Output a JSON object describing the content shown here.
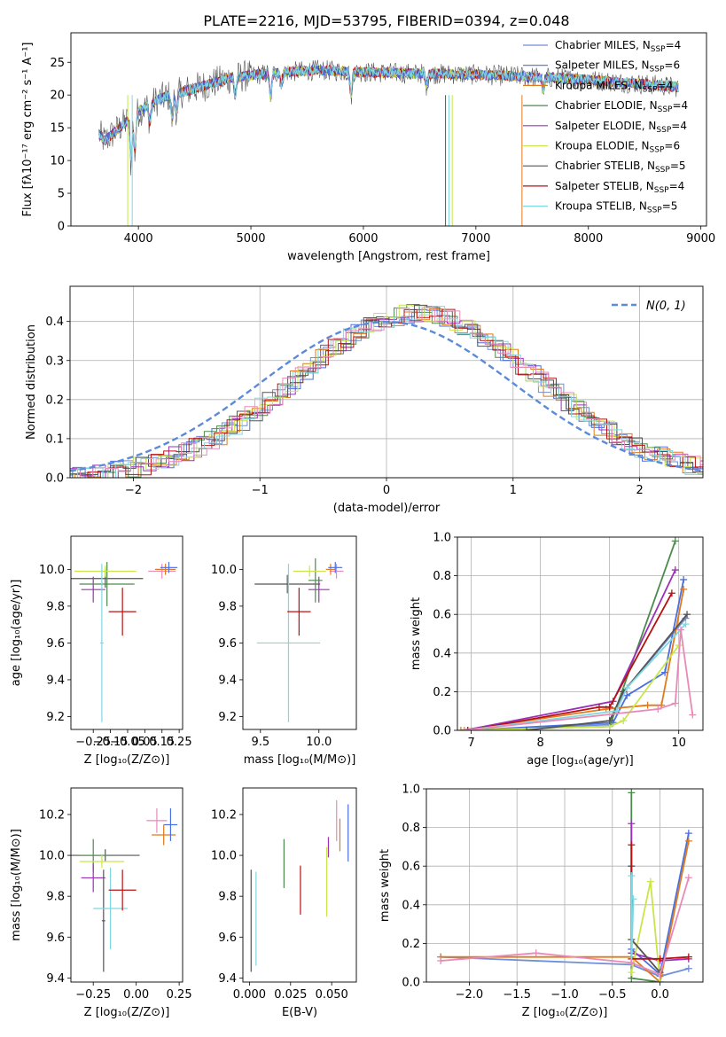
{
  "title": "PLATE=2216, MJD=53795, FIBERID=0394, z=0.048",
  "colors": {
    "chabrier_miles": "#6f8fd8",
    "salpeter_miles": "#4a6fdf",
    "kroupa_miles": "#e07a1a",
    "chabrier_elodie": "#4c8a4c",
    "salpeter_elodie": "#9b30b8",
    "kroupa_elodie": "#c8e64a",
    "chabrier_stelib": "#555555",
    "salpeter_stelib": "#b81010",
    "kroupa_stelib": "#7fd8e0",
    "pink": "#e88ab8",
    "normal_curve": "#5b8ad8"
  },
  "chart_data": [
    {
      "id": "spectrum",
      "type": "line",
      "xlabel": "wavelength [Angstrom, rest frame]",
      "ylabel": "Flux [fλ10⁻¹⁷ erg cm⁻² s⁻¹ A⁻¹]",
      "xlim": [
        3400,
        9050
      ],
      "ylim": [
        0,
        29.5
      ],
      "xticks": [
        "4000",
        "5000",
        "6000",
        "7000",
        "8000",
        "9000"
      ],
      "yticks": [
        "0",
        "5",
        "10",
        "15",
        "20",
        "25"
      ],
      "continuum": {
        "x": [
          3650,
          3700,
          3800,
          3900,
          4000,
          4200,
          4400,
          4600,
          4800,
          5000,
          5300,
          5600,
          6000,
          6400,
          6800,
          7200,
          7600,
          8000,
          8400,
          8800
        ],
        "y": [
          14,
          13,
          14.5,
          16,
          17.5,
          19.5,
          20.5,
          21.5,
          22.5,
          23,
          23.5,
          23.8,
          23.5,
          23.3,
          23.2,
          23,
          22.7,
          22.3,
          21.8,
          21.2
        ]
      },
      "legend": [
        {
          "label": "Chabrier MILES, N",
          "sub": "SSP",
          "tail": "=4",
          "color": "#6f8fd8"
        },
        {
          "label": "Salpeter MILES, N",
          "sub": "SSP",
          "tail": "=6",
          "color": "#4a6fdf"
        },
        {
          "label": "Kroupa MILES, N",
          "sub": "SSP",
          "tail": "=4",
          "color": "#e07a1a"
        },
        {
          "label": "Chabrier ELODIE, N",
          "sub": "SSP",
          "tail": "=4",
          "color": "#4c8a4c"
        },
        {
          "label": "Salpeter ELODIE, N",
          "sub": "SSP",
          "tail": "=4",
          "color": "#9b30b8"
        },
        {
          "label": "Kroupa ELODIE, N",
          "sub": "SSP",
          "tail": "=6",
          "color": "#c8e64a"
        },
        {
          "label": "Chabrier STELIB, N",
          "sub": "SSP",
          "tail": "=5",
          "color": "#555555"
        },
        {
          "label": "Salpeter STELIB, N",
          "sub": "SSP",
          "tail": "=4",
          "color": "#b81010"
        },
        {
          "label": "Kroupa STELIB, N",
          "sub": "SSP",
          "tail": "=5",
          "color": "#7fd8e0"
        }
      ]
    },
    {
      "id": "residuals",
      "type": "line",
      "xlabel": "(data-model)/error",
      "ylabel": "Normed distribution",
      "xlim": [
        -2.5,
        2.5
      ],
      "ylim": [
        0,
        0.49
      ],
      "xticks": [
        "−2",
        "−1",
        "0",
        "1",
        "2"
      ],
      "yticks": [
        "0.0",
        "0.1",
        "0.2",
        "0.3",
        "0.4"
      ],
      "legend": [
        {
          "label": "𝒩(0, 1)",
          "color": "#5b8ad8"
        }
      ],
      "grid": true
    },
    {
      "id": "age_vs_z",
      "type": "scatter",
      "xlabel": "Z [log₁₀(Z/Z⊙)]",
      "ylabel": "age  [log₁₀(age/yr)]",
      "xlim": [
        -0.38,
        0.27
      ],
      "ylim": [
        9.13,
        10.18
      ],
      "xticks": [
        "−0.25",
        "−0.15",
        "−0.05",
        "0.05",
        "0.15",
        "0.25"
      ],
      "yticks": [
        "9.2",
        "9.4",
        "9.6",
        "9.8",
        "10.0"
      ],
      "points": [
        {
          "x": -0.18,
          "xerr": 0.22,
          "y": 9.95,
          "yerr": 0.05,
          "c": "#555555"
        },
        {
          "x": -0.25,
          "xerr": 0.07,
          "y": 9.89,
          "yerr": 0.07,
          "c": "#9b30b8"
        },
        {
          "x": -0.17,
          "xerr": 0.16,
          "y": 9.92,
          "yerr": 0.12,
          "c": "#4c8a4c"
        },
        {
          "x": -0.18,
          "xerr": 0.18,
          "y": 9.99,
          "yerr": 0.03,
          "c": "#c8e64a"
        },
        {
          "x": -0.2,
          "xerr": 0.01,
          "y": 9.6,
          "yerr": 0.43,
          "c": "#7fd8e0"
        },
        {
          "x": -0.08,
          "xerr": 0.08,
          "y": 9.77,
          "yerr": 0.13,
          "c": "#b81010"
        },
        {
          "x": 0.15,
          "xerr": 0.08,
          "y": 9.99,
          "yerr": 0.04,
          "c": "#e88ab8"
        },
        {
          "x": 0.17,
          "xerr": 0.06,
          "y": 10.0,
          "yerr": 0.03,
          "c": "#e07a1a"
        },
        {
          "x": 0.19,
          "xerr": 0.05,
          "y": 10.01,
          "yerr": 0.03,
          "c": "#4a6fdf"
        }
      ]
    },
    {
      "id": "age_vs_mass",
      "type": "scatter",
      "xlabel": "mass [log₁₀(M/M⊙)]",
      "ylabel": "",
      "xlim": [
        9.35,
        10.32
      ],
      "ylim": [
        9.13,
        10.18
      ],
      "xticks": [
        "9.5",
        "10.0"
      ],
      "yticks": [
        "9.2",
        "9.4",
        "9.6",
        "9.8",
        "10.0"
      ],
      "points": [
        {
          "x": 9.73,
          "xerr": 0.28,
          "y": 9.92,
          "yerr": 0.05,
          "c": "#555555"
        },
        {
          "x": 10.0,
          "xerr": 0.09,
          "y": 9.89,
          "yerr": 0.07,
          "c": "#9b30b8"
        },
        {
          "x": 9.97,
          "xerr": 0.06,
          "y": 9.94,
          "yerr": 0.12,
          "c": "#4c8a4c"
        },
        {
          "x": 9.92,
          "xerr": 0.14,
          "y": 9.99,
          "yerr": 0.03,
          "c": "#c8e64a"
        },
        {
          "x": 9.74,
          "xerr": 0.27,
          "y": 9.6,
          "yerr": 0.43,
          "c": "#7fd8e0"
        },
        {
          "x": 9.83,
          "xerr": 0.1,
          "y": 9.77,
          "yerr": 0.13,
          "c": "#b81010"
        },
        {
          "x": 10.15,
          "xerr": 0.06,
          "y": 9.99,
          "yerr": 0.04,
          "c": "#e88ab8"
        },
        {
          "x": 10.1,
          "xerr": 0.04,
          "y": 10.0,
          "yerr": 0.03,
          "c": "#e07a1a"
        },
        {
          "x": 10.14,
          "xerr": 0.06,
          "y": 10.01,
          "yerr": 0.03,
          "c": "#4a6fdf"
        }
      ]
    },
    {
      "id": "massweight_vs_age",
      "type": "line",
      "xlabel": "age  [log₁₀(age/yr)]",
      "ylabel": "mass weight",
      "xlim": [
        6.8,
        10.35
      ],
      "ylim": [
        0,
        1.0
      ],
      "xticks": [
        "7",
        "8",
        "9",
        "10"
      ],
      "yticks": [
        "0.0",
        "0.2",
        "0.4",
        "0.6",
        "0.8",
        "1.0"
      ],
      "grid": true,
      "series": [
        {
          "c": "#6f8fd8",
          "x": [
            6.9,
            9.0,
            9.2,
            10.1
          ],
          "y": [
            0.0,
            0.03,
            0.2,
            0.58
          ]
        },
        {
          "c": "#4a6fdf",
          "x": [
            6.95,
            9.05,
            9.25,
            9.8,
            10.07
          ],
          "y": [
            0.0,
            0.04,
            0.18,
            0.3,
            0.78
          ]
        },
        {
          "c": "#e07a1a",
          "x": [
            6.85,
            8.95,
            9.55,
            9.75,
            10.07
          ],
          "y": [
            0.0,
            0.11,
            0.13,
            0.13,
            0.73
          ]
        },
        {
          "c": "#4c8a4c",
          "x": [
            6.9,
            9.0,
            9.95
          ],
          "y": [
            0.0,
            0.02,
            0.98
          ]
        },
        {
          "c": "#9b30b8",
          "x": [
            6.9,
            9.05,
            9.95
          ],
          "y": [
            0.0,
            0.15,
            0.83
          ]
        },
        {
          "c": "#c8e64a",
          "x": [
            6.95,
            9.0,
            9.2,
            10.0
          ],
          "y": [
            0.0,
            0.02,
            0.05,
            0.44
          ]
        },
        {
          "c": "#555555",
          "x": [
            7.8,
            9.0,
            9.2,
            10.12
          ],
          "y": [
            0.0,
            0.05,
            0.2,
            0.6
          ]
        },
        {
          "c": "#b81010",
          "x": [
            6.95,
            8.85,
            9.0,
            9.9
          ],
          "y": [
            0.0,
            0.12,
            0.12,
            0.71
          ]
        },
        {
          "c": "#7fd8e0",
          "x": [
            6.9,
            9.1,
            9.25,
            10.1
          ],
          "y": [
            0.0,
            0.1,
            0.22,
            0.55
          ]
        },
        {
          "c": "#e88ab8",
          "x": [
            6.9,
            9.7,
            9.95,
            10.03,
            10.2
          ],
          "y": [
            0.0,
            0.11,
            0.14,
            0.52,
            0.08
          ]
        }
      ]
    },
    {
      "id": "mass_vs_z",
      "type": "scatter",
      "xlabel": "Z [log₁₀(Z/Z⊙)]",
      "ylabel": "mass [log₁₀(M/M⊙)]",
      "xlim": [
        -0.38,
        0.27
      ],
      "ylim": [
        9.38,
        10.33
      ],
      "xticks": [
        "−0.25",
        "0.00",
        "0.25"
      ],
      "yticks": [
        "9.4",
        "9.6",
        "9.8",
        "10.0",
        "10.2"
      ],
      "points": [
        {
          "x": -0.18,
          "xerr": 0.2,
          "y": 10.0,
          "yerr": 0.03,
          "c": "#555555"
        },
        {
          "x": -0.25,
          "xerr": 0.08,
          "y": 10.0,
          "yerr": 0.08,
          "c": "#4c8a4c"
        },
        {
          "x": -0.25,
          "xerr": 0.07,
          "y": 9.89,
          "yerr": 0.07,
          "c": "#9b30b8"
        },
        {
          "x": -0.2,
          "xerr": 0.13,
          "y": 9.97,
          "yerr": 0.03,
          "c": "#c8e64a"
        },
        {
          "x": -0.19,
          "xerr": 0.01,
          "y": 9.68,
          "yerr": 0.25,
          "c": "#555555"
        },
        {
          "x": -0.15,
          "xerr": 0.1,
          "y": 9.74,
          "yerr": 0.2,
          "c": "#7fd8e0"
        },
        {
          "x": -0.08,
          "xerr": 0.08,
          "y": 9.83,
          "yerr": 0.1,
          "c": "#b81010"
        },
        {
          "x": 0.12,
          "xerr": 0.06,
          "y": 10.17,
          "yerr": 0.06,
          "c": "#e88ab8"
        },
        {
          "x": 0.16,
          "xerr": 0.07,
          "y": 10.1,
          "yerr": 0.05,
          "c": "#e07a1a"
        },
        {
          "x": 0.2,
          "xerr": 0.04,
          "y": 10.15,
          "yerr": 0.08,
          "c": "#4a6fdf"
        }
      ]
    },
    {
      "id": "mass_vs_ebv",
      "type": "scatter",
      "xlabel": "E(B-V)",
      "ylabel": "",
      "xlim": [
        -0.004,
        0.065
      ],
      "ylim": [
        9.38,
        10.33
      ],
      "xticks": [
        "0.000",
        "0.025",
        "0.050"
      ],
      "yticks": [
        "9.4",
        "9.6",
        "9.8",
        "10.0",
        "10.2"
      ],
      "points": [
        {
          "x": 0.001,
          "xerr": 0,
          "y": 9.68,
          "yerr": 0.25,
          "c": "#555555"
        },
        {
          "x": 0.004,
          "xerr": 0,
          "y": 9.69,
          "yerr": 0.23,
          "c": "#7fd8e0"
        },
        {
          "x": 0.021,
          "xerr": 0,
          "y": 9.96,
          "yerr": 0.12,
          "c": "#4c8a4c"
        },
        {
          "x": 0.031,
          "xerr": 0,
          "y": 9.83,
          "yerr": 0.12,
          "c": "#b81010"
        },
        {
          "x": 0.047,
          "xerr": 0,
          "y": 9.87,
          "yerr": 0.17,
          "c": "#c8e64a"
        },
        {
          "x": 0.048,
          "xerr": 0,
          "y": 10.04,
          "yerr": 0.05,
          "c": "#9b30b8"
        },
        {
          "x": 0.053,
          "xerr": 0,
          "y": 10.17,
          "yerr": 0.1,
          "c": "#e88ab8"
        },
        {
          "x": 0.055,
          "xerr": 0,
          "y": 10.1,
          "yerr": 0.08,
          "c": "#e07a1a"
        },
        {
          "x": 0.06,
          "xerr": 0,
          "y": 10.11,
          "yerr": 0.14,
          "c": "#4a6fdf"
        }
      ]
    },
    {
      "id": "massweight_vs_z",
      "type": "line",
      "xlabel": "Z [log₁₀(Z/Z⊙)]",
      "ylabel": "mass weight",
      "xlim": [
        -2.45,
        0.45
      ],
      "ylim": [
        0,
        1.0
      ],
      "xticks": [
        "−2.0",
        "−1.5",
        "−1.0",
        "−0.5",
        "0.0"
      ],
      "yticks": [
        "0.0",
        "0.2",
        "0.4",
        "0.6",
        "0.8",
        "1.0"
      ],
      "grid": true,
      "series": [
        {
          "c": "#6f8fd8",
          "x": [
            -2.3,
            -0.3,
            0.0,
            0.3
          ],
          "y": [
            0.13,
            0.09,
            0.03,
            0.07
          ]
        },
        {
          "c": "#4a6fdf",
          "x": [
            -0.3,
            0.0,
            0.3
          ],
          "y": [
            0.17,
            0.04,
            0.77
          ]
        },
        {
          "c": "#e07a1a",
          "x": [
            -2.3,
            -0.3,
            0.0,
            0.3
          ],
          "y": [
            0.13,
            0.13,
            0.0,
            0.73
          ]
        },
        {
          "c": "#4c8a4c",
          "x": [
            -0.3,
            -0.3,
            0.0
          ],
          "y": [
            0.98,
            0.02,
            0.0
          ]
        },
        {
          "c": "#9b30b8",
          "x": [
            -0.3,
            -0.3,
            0.0,
            0.3
          ],
          "y": [
            0.82,
            0.15,
            0.11,
            0.12
          ]
        },
        {
          "c": "#c8e64a",
          "x": [
            -0.3,
            -0.1,
            0.0
          ],
          "y": [
            0.05,
            0.52,
            0.0
          ]
        },
        {
          "c": "#555555",
          "x": [
            -0.3,
            -0.3,
            0.0
          ],
          "y": [
            0.6,
            0.22,
            0.05
          ]
        },
        {
          "c": "#b81010",
          "x": [
            -0.3,
            -0.3,
            0.0,
            0.3
          ],
          "y": [
            0.71,
            0.12,
            0.12,
            0.13
          ]
        },
        {
          "c": "#7fd8e0",
          "x": [
            -0.3,
            -0.3,
            -0.28
          ],
          "y": [
            0.55,
            0.1,
            0.43
          ]
        },
        {
          "c": "#e88ab8",
          "x": [
            -2.3,
            -1.3,
            -0.3,
            0.0,
            0.3
          ],
          "y": [
            0.11,
            0.15,
            0.1,
            0.04,
            0.54
          ]
        }
      ]
    }
  ]
}
